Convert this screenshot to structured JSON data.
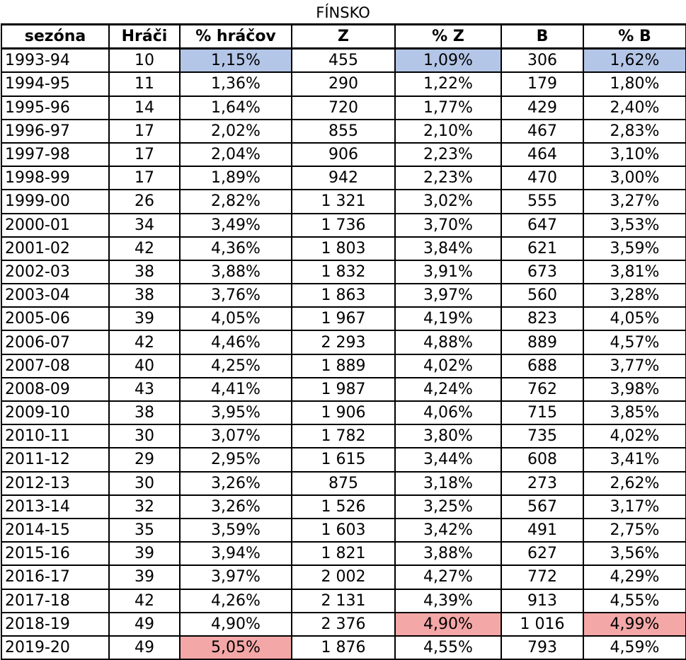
{
  "title": "FÍNSKO",
  "colors": {
    "highlight_low": "#b4c6e7",
    "highlight_high": "#f4a7a7"
  },
  "headers": [
    "sezóna",
    "Hráči",
    "% hráčov",
    "Z",
    "% Z",
    "B",
    "% B"
  ],
  "rows": [
    [
      "1993-94",
      "10",
      "1,15%",
      "455",
      "1,09%",
      "306",
      "1,62%"
    ],
    [
      "1994-95",
      "11",
      "1,36%",
      "290",
      "1,22%",
      "179",
      "1,80%"
    ],
    [
      "1995-96",
      "14",
      "1,64%",
      "720",
      "1,77%",
      "429",
      "2,40%"
    ],
    [
      "1996-97",
      "17",
      "2,02%",
      "855",
      "2,10%",
      "467",
      "2,83%"
    ],
    [
      "1997-98",
      "17",
      "2,04%",
      "906",
      "2,23%",
      "464",
      "3,10%"
    ],
    [
      "1998-99",
      "17",
      "1,89%",
      "942",
      "2,23%",
      "470",
      "3,00%"
    ],
    [
      "1999-00",
      "26",
      "2,82%",
      "1 321",
      "3,02%",
      "555",
      "3,27%"
    ],
    [
      "2000-01",
      "34",
      "3,49%",
      "1 736",
      "3,70%",
      "647",
      "3,53%"
    ],
    [
      "2001-02",
      "42",
      "4,36%",
      "1 803",
      "3,84%",
      "621",
      "3,59%"
    ],
    [
      "2002-03",
      "38",
      "3,88%",
      "1 832",
      "3,91%",
      "673",
      "3,81%"
    ],
    [
      "2003-04",
      "38",
      "3,76%",
      "1 863",
      "3,97%",
      "560",
      "3,28%"
    ],
    [
      "2005-06",
      "39",
      "4,05%",
      "1 967",
      "4,19%",
      "823",
      "4,05%"
    ],
    [
      "2006-07",
      "42",
      "4,46%",
      "2 293",
      "4,88%",
      "889",
      "4,57%"
    ],
    [
      "2007-08",
      "40",
      "4,25%",
      "1 889",
      "4,02%",
      "688",
      "3,77%"
    ],
    [
      "2008-09",
      "43",
      "4,41%",
      "1 987",
      "4,24%",
      "762",
      "3,98%"
    ],
    [
      "2009-10",
      "38",
      "3,95%",
      "1 906",
      "4,06%",
      "715",
      "3,85%"
    ],
    [
      "2010-11",
      "30",
      "3,07%",
      "1 782",
      "3,80%",
      "735",
      "4,02%"
    ],
    [
      "2011-12",
      "29",
      "2,95%",
      "1 615",
      "3,44%",
      "608",
      "3,41%"
    ],
    [
      "2012-13",
      "30",
      "3,26%",
      "875",
      "3,18%",
      "273",
      "2,62%"
    ],
    [
      "2013-14",
      "32",
      "3,26%",
      "1 526",
      "3,25%",
      "567",
      "3,17%"
    ],
    [
      "2014-15",
      "35",
      "3,59%",
      "1 603",
      "3,42%",
      "491",
      "2,75%"
    ],
    [
      "2015-16",
      "39",
      "3,94%",
      "1 821",
      "3,88%",
      "627",
      "3,56%"
    ],
    [
      "2016-17",
      "39",
      "3,97%",
      "2 002",
      "4,27%",
      "772",
      "4,29%"
    ],
    [
      "2017-18",
      "42",
      "4,26%",
      "2 131",
      "4,39%",
      "913",
      "4,55%"
    ],
    [
      "2018-19",
      "49",
      "4,90%",
      "2 376",
      "4,90%",
      "1 016",
      "4,99%"
    ],
    [
      "2019-20",
      "49",
      "5,05%",
      "1 876",
      "4,55%",
      "793",
      "4,59%"
    ]
  ],
  "highlights": {
    "low": [
      [
        0,
        2
      ],
      [
        0,
        4
      ],
      [
        0,
        6
      ]
    ],
    "high": [
      [
        25,
        2
      ],
      [
        24,
        4
      ],
      [
        24,
        6
      ]
    ]
  }
}
